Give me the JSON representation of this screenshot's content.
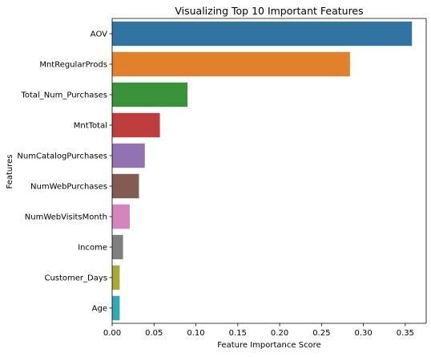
{
  "chart_data": {
    "type": "bar",
    "orientation": "horizontal",
    "title": "Visualizing Top 10 Important Features",
    "xlabel": "Feature Importance Score",
    "ylabel": "Features",
    "xlim": [
      0,
      0.375
    ],
    "xticks": [
      "0.00",
      "0.05",
      "0.10",
      "0.15",
      "0.20",
      "0.25",
      "0.30",
      "0.35"
    ],
    "grid": false,
    "categories": [
      "AOV",
      "MntRegularProds",
      "Total_Num_Purchases",
      "MntTotal",
      "NumCatalogPurchases",
      "NumWebPurchases",
      "NumWebVisitsMonth",
      "Income",
      "Customer_Days",
      "Age"
    ],
    "values": [
      0.358,
      0.284,
      0.09,
      0.057,
      0.039,
      0.032,
      0.021,
      0.013,
      0.009,
      0.009
    ],
    "colors": [
      "#3274a1",
      "#e1812c",
      "#3a923a",
      "#c03d3e",
      "#9372b2",
      "#845b53",
      "#d684bd",
      "#7f7f7f",
      "#a9aa35",
      "#2eaab8"
    ]
  }
}
